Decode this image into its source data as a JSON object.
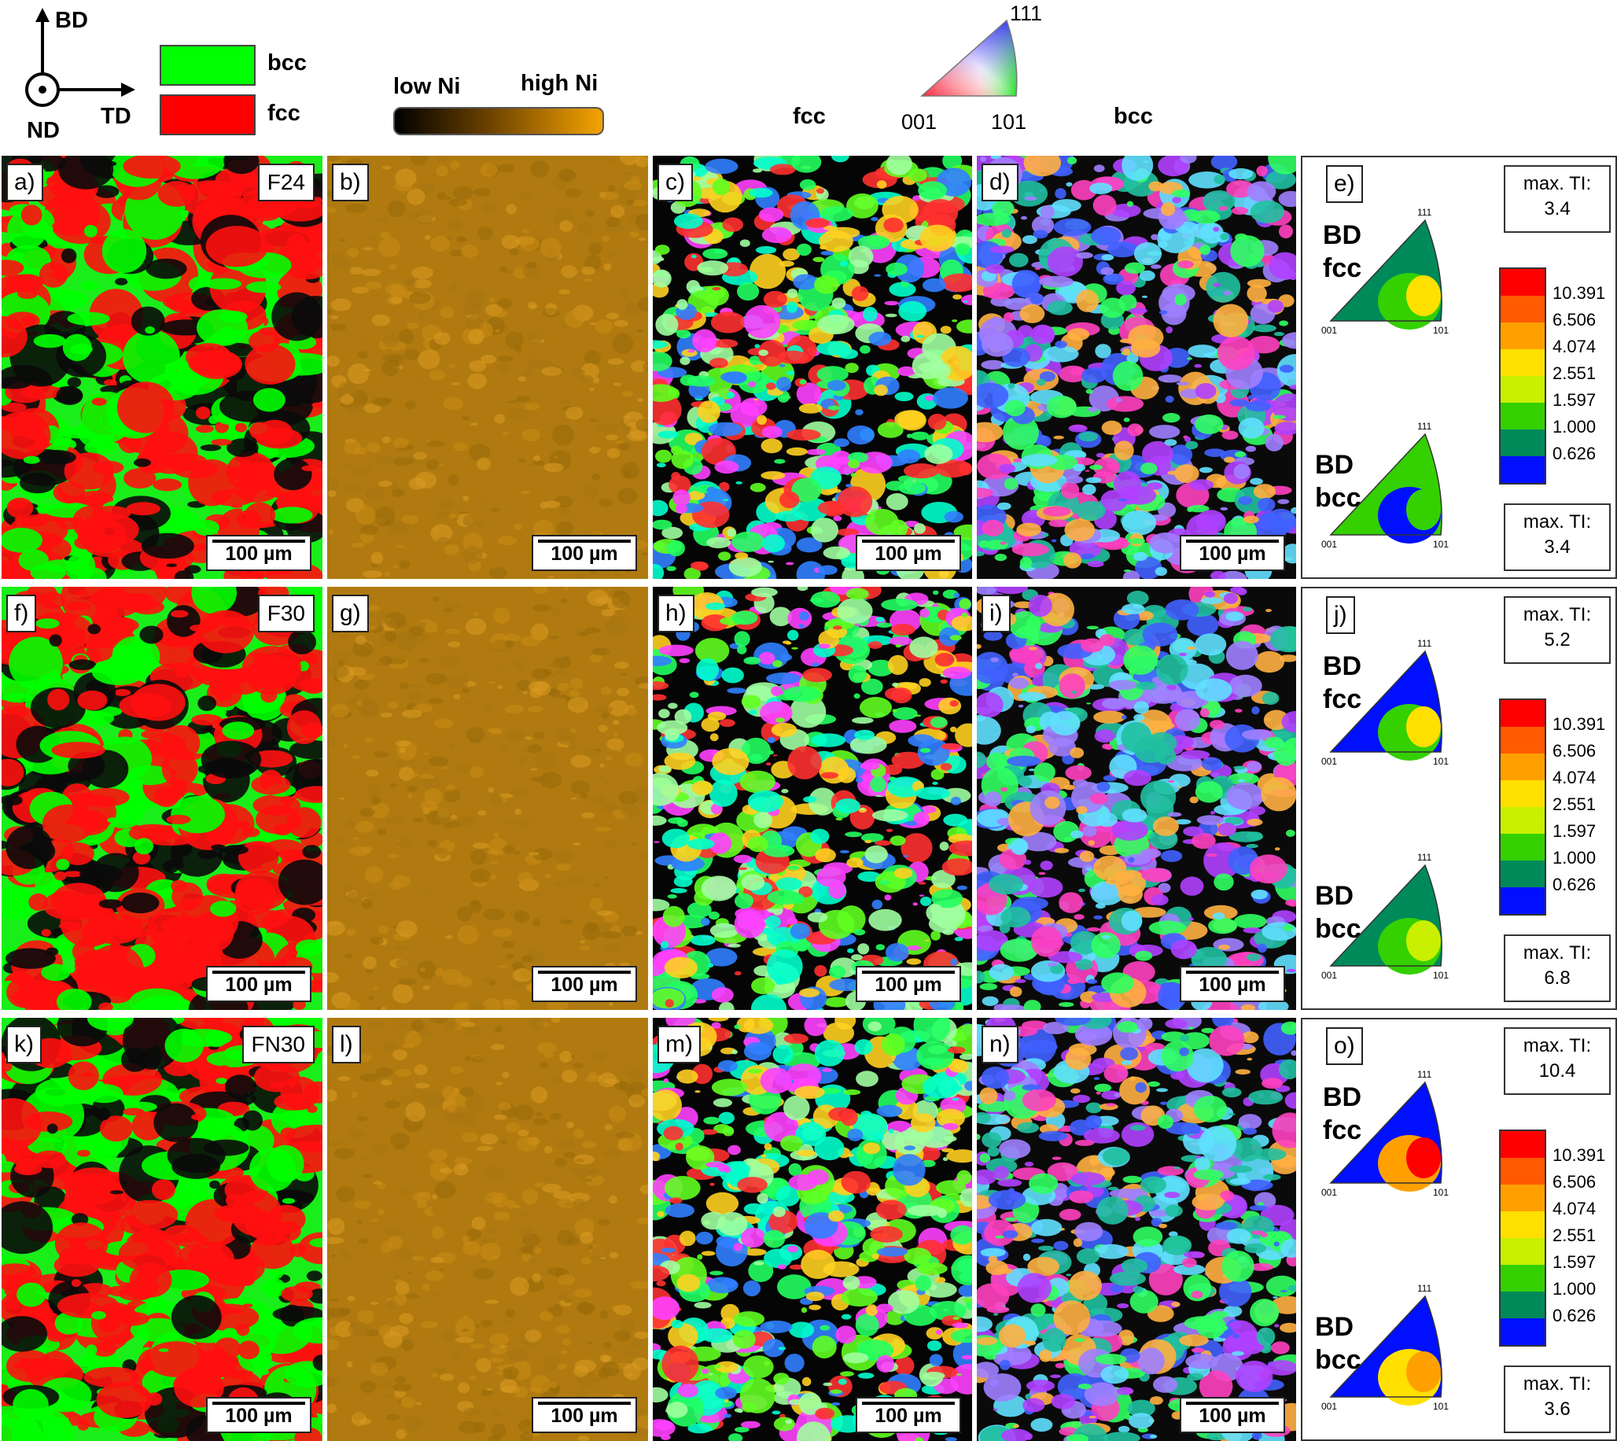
{
  "axes": {
    "bd": "BD",
    "td": "TD",
    "nd": "ND"
  },
  "phase_legend": [
    {
      "label": "bcc",
      "color": "#00ff00"
    },
    {
      "label": "fcc",
      "color": "#ff0000"
    }
  ],
  "ni_legend": {
    "low": "low Ni",
    "high": "high Ni",
    "colors": [
      "#000000",
      "#f5a300"
    ]
  },
  "ipf_key": {
    "fcc": "fcc",
    "bcc": "bcc",
    "corner_111": "111",
    "corner_001": "001",
    "corner_101": "101"
  },
  "scale_bar": "100 µm",
  "rows": [
    {
      "sample": "F24",
      "panels": [
        "a)",
        "b)",
        "c)",
        "d)"
      ],
      "pole_panel": "e)",
      "fcc_label": [
        "BD",
        "fcc"
      ],
      "bcc_label": [
        "BD",
        "bcc"
      ],
      "fcc_max_label": "max. TI:",
      "fcc_max": "3.4",
      "bcc_max_label": "max. TI:",
      "bcc_max": "3.4"
    },
    {
      "sample": "F30",
      "panels": [
        "f)",
        "g)",
        "h)",
        "i)"
      ],
      "pole_panel": "j)",
      "fcc_label": [
        "BD",
        "fcc"
      ],
      "bcc_label": [
        "BD",
        "bcc"
      ],
      "fcc_max_label": "max. TI:",
      "fcc_max": "5.2",
      "bcc_max_label": "max. TI:",
      "bcc_max": "6.8"
    },
    {
      "sample": "FN30",
      "panels": [
        "k)",
        "l)",
        "m)",
        "n)"
      ],
      "pole_panel": "o)",
      "fcc_label": [
        "BD",
        "fcc"
      ],
      "bcc_label": [
        "BD",
        "bcc"
      ],
      "fcc_max_label": "max. TI:",
      "fcc_max": "10.4",
      "bcc_max_label": "max. TI:",
      "bcc_max": "3.6"
    }
  ],
  "colorbar": {
    "ticks": [
      "10.391",
      "6.506",
      "4.074",
      "2.551",
      "1.597",
      "1.000",
      "0.626"
    ],
    "colors": [
      "#ff0000",
      "#ff5a00",
      "#ffa000",
      "#ffe000",
      "#c8f000",
      "#34d000",
      "#008a5a",
      "#0010ff"
    ]
  }
}
